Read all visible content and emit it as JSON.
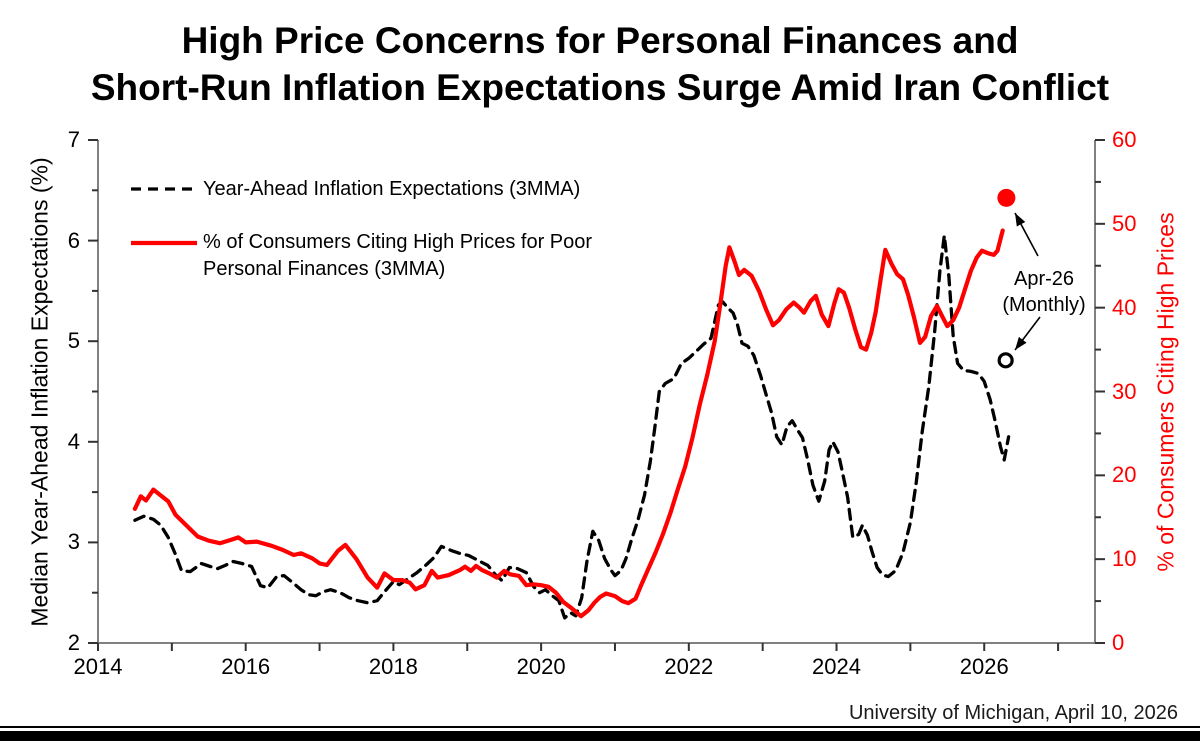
{
  "title": {
    "line1": "High Price Concerns for Personal Finances and",
    "line2": "Short-Run Inflation Expectations Surge Amid Iran Conflict"
  },
  "legend": {
    "item1_label": "Year-Ahead Inflation Expectations (3MMA)",
    "item2_label_line1": "% of Consumers Citing High Prices for Poor",
    "item2_label_line2": "Personal Finances (3MMA)"
  },
  "annotation": {
    "line1": "Apr-26",
    "line2": "(Monthly)"
  },
  "footer": "University of Michigan, April 10, 2026",
  "colors": {
    "series_red": "#ff0000",
    "series_black": "#000000",
    "axis_gray": "#808080"
  },
  "chart_data": {
    "type": "line",
    "title": "High Price Concerns for Personal Finances and Short-Run Inflation Expectations Surge Amid Iran Conflict",
    "x_axis": {
      "range": [
        2014,
        2027.5
      ],
      "tick_step": 1,
      "labeled_ticks": [
        2014,
        2016,
        2018,
        2020,
        2022,
        2024,
        2026
      ]
    },
    "left_axis": {
      "label": "Median Year-Ahead Inflation Expectations (%)",
      "range": [
        2,
        7
      ],
      "major_ticks": [
        2,
        3,
        4,
        5,
        6,
        7
      ],
      "minor_step": 0.5,
      "color": "#000000"
    },
    "right_axis": {
      "label": "% of Consumers Citing High Prices",
      "range": [
        0,
        60
      ],
      "major_ticks": [
        0,
        10,
        20,
        30,
        40,
        50,
        60
      ],
      "minor_step": 5,
      "color": "#ff0000"
    },
    "legend_position": "upper-left",
    "grid": false,
    "series": [
      {
        "name": "Year-Ahead Inflation Expectations (3MMA)",
        "axis": "left",
        "style": "dashed",
        "color": "#000000",
        "points": [
          [
            2014.5,
            3.22
          ],
          [
            2014.62,
            3.26
          ],
          [
            2014.75,
            3.23
          ],
          [
            2014.85,
            3.17
          ],
          [
            2014.95,
            3.05
          ],
          [
            2015.05,
            2.88
          ],
          [
            2015.13,
            2.72
          ],
          [
            2015.25,
            2.71
          ],
          [
            2015.4,
            2.79
          ],
          [
            2015.52,
            2.76
          ],
          [
            2015.62,
            2.74
          ],
          [
            2015.72,
            2.77
          ],
          [
            2015.83,
            2.81
          ],
          [
            2015.95,
            2.79
          ],
          [
            2016.08,
            2.76
          ],
          [
            2016.2,
            2.57
          ],
          [
            2016.3,
            2.55
          ],
          [
            2016.42,
            2.66
          ],
          [
            2016.52,
            2.67
          ],
          [
            2016.62,
            2.61
          ],
          [
            2016.75,
            2.53
          ],
          [
            2016.85,
            2.48
          ],
          [
            2016.95,
            2.47
          ],
          [
            2017.05,
            2.51
          ],
          [
            2017.15,
            2.53
          ],
          [
            2017.28,
            2.5
          ],
          [
            2017.4,
            2.45
          ],
          [
            2017.52,
            2.42
          ],
          [
            2017.65,
            2.4
          ],
          [
            2017.78,
            2.42
          ],
          [
            2017.88,
            2.51
          ],
          [
            2018.0,
            2.61
          ],
          [
            2018.08,
            2.58
          ],
          [
            2018.2,
            2.64
          ],
          [
            2018.32,
            2.7
          ],
          [
            2018.45,
            2.78
          ],
          [
            2018.55,
            2.85
          ],
          [
            2018.65,
            2.96
          ],
          [
            2018.78,
            2.92
          ],
          [
            2018.9,
            2.89
          ],
          [
            2019.02,
            2.87
          ],
          [
            2019.15,
            2.82
          ],
          [
            2019.28,
            2.77
          ],
          [
            2019.38,
            2.68
          ],
          [
            2019.47,
            2.62
          ],
          [
            2019.57,
            2.75
          ],
          [
            2019.68,
            2.74
          ],
          [
            2019.8,
            2.7
          ],
          [
            2019.9,
            2.56
          ],
          [
            2019.98,
            2.5
          ],
          [
            2020.06,
            2.53
          ],
          [
            2020.15,
            2.47
          ],
          [
            2020.24,
            2.42
          ],
          [
            2020.32,
            2.25
          ],
          [
            2020.4,
            2.3
          ],
          [
            2020.47,
            2.27
          ],
          [
            2020.55,
            2.45
          ],
          [
            2020.62,
            2.81
          ],
          [
            2020.7,
            3.11
          ],
          [
            2020.78,
            3.02
          ],
          [
            2020.86,
            2.84
          ],
          [
            2020.95,
            2.72
          ],
          [
            2021.0,
            2.67
          ],
          [
            2021.08,
            2.72
          ],
          [
            2021.15,
            2.84
          ],
          [
            2021.23,
            3.04
          ],
          [
            2021.31,
            3.22
          ],
          [
            2021.4,
            3.47
          ],
          [
            2021.48,
            3.81
          ],
          [
            2021.54,
            4.14
          ],
          [
            2021.6,
            4.5
          ],
          [
            2021.68,
            4.58
          ],
          [
            2021.8,
            4.63
          ],
          [
            2021.9,
            4.78
          ],
          [
            2022.0,
            4.83
          ],
          [
            2022.1,
            4.9
          ],
          [
            2022.2,
            4.97
          ],
          [
            2022.3,
            5.03
          ],
          [
            2022.4,
            5.36
          ],
          [
            2022.46,
            5.39
          ],
          [
            2022.53,
            5.33
          ],
          [
            2022.6,
            5.28
          ],
          [
            2022.66,
            5.16
          ],
          [
            2022.72,
            4.98
          ],
          [
            2022.8,
            4.95
          ],
          [
            2022.88,
            4.86
          ],
          [
            2022.97,
            4.66
          ],
          [
            2023.05,
            4.46
          ],
          [
            2023.12,
            4.29
          ],
          [
            2023.19,
            4.05
          ],
          [
            2023.26,
            3.97
          ],
          [
            2023.33,
            4.15
          ],
          [
            2023.4,
            4.21
          ],
          [
            2023.47,
            4.12
          ],
          [
            2023.54,
            4.04
          ],
          [
            2023.61,
            3.82
          ],
          [
            2023.68,
            3.57
          ],
          [
            2023.76,
            3.41
          ],
          [
            2023.84,
            3.61
          ],
          [
            2023.9,
            3.92
          ],
          [
            2023.95,
            4.0
          ],
          [
            2024.02,
            3.9
          ],
          [
            2024.08,
            3.7
          ],
          [
            2024.15,
            3.45
          ],
          [
            2024.22,
            3.05
          ],
          [
            2024.3,
            3.08
          ],
          [
            2024.35,
            3.17
          ],
          [
            2024.42,
            3.07
          ],
          [
            2024.48,
            2.91
          ],
          [
            2024.55,
            2.75
          ],
          [
            2024.62,
            2.68
          ],
          [
            2024.7,
            2.66
          ],
          [
            2024.8,
            2.72
          ],
          [
            2024.9,
            2.9
          ],
          [
            2025.0,
            3.2
          ],
          [
            2025.08,
            3.6
          ],
          [
            2025.16,
            4.1
          ],
          [
            2025.25,
            4.55
          ],
          [
            2025.33,
            5.1
          ],
          [
            2025.4,
            5.7
          ],
          [
            2025.46,
            6.05
          ],
          [
            2025.52,
            5.65
          ],
          [
            2025.58,
            5.05
          ],
          [
            2025.64,
            4.78
          ],
          [
            2025.72,
            4.71
          ],
          [
            2025.82,
            4.7
          ],
          [
            2025.92,
            4.68
          ],
          [
            2026.0,
            4.6
          ],
          [
            2026.08,
            4.42
          ],
          [
            2026.15,
            4.2
          ],
          [
            2026.22,
            3.95
          ],
          [
            2026.27,
            3.82
          ],
          [
            2026.33,
            4.05
          ]
        ]
      },
      {
        "name": "% of Consumers Citing High Prices for Poor Personal Finances (3MMA)",
        "axis": "right",
        "style": "solid",
        "color": "#ff0000",
        "points": [
          [
            2014.5,
            16.0
          ],
          [
            2014.58,
            17.5
          ],
          [
            2014.65,
            17.0
          ],
          [
            2014.75,
            18.3
          ],
          [
            2014.85,
            17.6
          ],
          [
            2014.95,
            16.9
          ],
          [
            2015.05,
            15.3
          ],
          [
            2015.2,
            14.0
          ],
          [
            2015.35,
            12.7
          ],
          [
            2015.5,
            12.2
          ],
          [
            2015.65,
            11.9
          ],
          [
            2015.8,
            12.3
          ],
          [
            2015.9,
            12.6
          ],
          [
            2016.0,
            12.0
          ],
          [
            2016.15,
            12.1
          ],
          [
            2016.35,
            11.6
          ],
          [
            2016.5,
            11.1
          ],
          [
            2016.65,
            10.5
          ],
          [
            2016.75,
            10.7
          ],
          [
            2016.9,
            10.1
          ],
          [
            2017.0,
            9.5
          ],
          [
            2017.1,
            9.3
          ],
          [
            2017.25,
            11.0
          ],
          [
            2017.35,
            11.7
          ],
          [
            2017.5,
            10.0
          ],
          [
            2017.65,
            7.8
          ],
          [
            2017.78,
            6.6
          ],
          [
            2017.88,
            8.3
          ],
          [
            2018.0,
            7.5
          ],
          [
            2018.12,
            7.5
          ],
          [
            2018.22,
            7.2
          ],
          [
            2018.3,
            6.4
          ],
          [
            2018.42,
            6.9
          ],
          [
            2018.52,
            8.6
          ],
          [
            2018.6,
            7.8
          ],
          [
            2018.75,
            8.1
          ],
          [
            2018.9,
            8.7
          ],
          [
            2018.97,
            9.1
          ],
          [
            2019.05,
            8.6
          ],
          [
            2019.12,
            9.2
          ],
          [
            2019.2,
            8.7
          ],
          [
            2019.3,
            8.3
          ],
          [
            2019.4,
            7.8
          ],
          [
            2019.5,
            8.6
          ],
          [
            2019.58,
            8.2
          ],
          [
            2019.7,
            8.0
          ],
          [
            2019.8,
            6.9
          ],
          [
            2019.9,
            7.0
          ],
          [
            2020.0,
            6.9
          ],
          [
            2020.1,
            6.7
          ],
          [
            2020.2,
            6.0
          ],
          [
            2020.3,
            4.9
          ],
          [
            2020.42,
            4.1
          ],
          [
            2020.54,
            3.2
          ],
          [
            2020.64,
            3.9
          ],
          [
            2020.72,
            4.8
          ],
          [
            2020.8,
            5.5
          ],
          [
            2020.88,
            5.9
          ],
          [
            2021.0,
            5.6
          ],
          [
            2021.1,
            5.0
          ],
          [
            2021.18,
            4.75
          ],
          [
            2021.28,
            5.3
          ],
          [
            2021.35,
            6.8
          ],
          [
            2021.45,
            8.8
          ],
          [
            2021.55,
            10.8
          ],
          [
            2021.65,
            13.0
          ],
          [
            2021.75,
            15.5
          ],
          [
            2021.85,
            18.3
          ],
          [
            2021.95,
            21.0
          ],
          [
            2022.05,
            24.5
          ],
          [
            2022.15,
            28.5
          ],
          [
            2022.25,
            32.0
          ],
          [
            2022.35,
            36.0
          ],
          [
            2022.42,
            40.0
          ],
          [
            2022.5,
            45.0
          ],
          [
            2022.55,
            47.2
          ],
          [
            2022.62,
            45.5
          ],
          [
            2022.68,
            43.9
          ],
          [
            2022.75,
            44.5
          ],
          [
            2022.85,
            43.8
          ],
          [
            2022.95,
            42.0
          ],
          [
            2023.05,
            39.7
          ],
          [
            2023.14,
            37.9
          ],
          [
            2023.22,
            38.5
          ],
          [
            2023.32,
            39.8
          ],
          [
            2023.42,
            40.6
          ],
          [
            2023.5,
            40.0
          ],
          [
            2023.56,
            39.4
          ],
          [
            2023.65,
            40.8
          ],
          [
            2023.72,
            41.4
          ],
          [
            2023.8,
            39.2
          ],
          [
            2023.89,
            37.8
          ],
          [
            2023.97,
            40.5
          ],
          [
            2024.03,
            42.2
          ],
          [
            2024.1,
            41.8
          ],
          [
            2024.17,
            40.0
          ],
          [
            2024.25,
            37.5
          ],
          [
            2024.33,
            35.3
          ],
          [
            2024.4,
            35.0
          ],
          [
            2024.47,
            37.0
          ],
          [
            2024.53,
            39.5
          ],
          [
            2024.6,
            43.5
          ],
          [
            2024.66,
            46.9
          ],
          [
            2024.74,
            45.3
          ],
          [
            2024.82,
            44.0
          ],
          [
            2024.9,
            43.4
          ],
          [
            2024.97,
            41.5
          ],
          [
            2025.05,
            38.8
          ],
          [
            2025.13,
            35.8
          ],
          [
            2025.2,
            36.5
          ],
          [
            2025.28,
            39.0
          ],
          [
            2025.36,
            40.2
          ],
          [
            2025.44,
            38.8
          ],
          [
            2025.5,
            37.8
          ],
          [
            2025.58,
            38.5
          ],
          [
            2025.66,
            40.0
          ],
          [
            2025.74,
            42.2
          ],
          [
            2025.82,
            44.4
          ],
          [
            2025.9,
            46.0
          ],
          [
            2025.97,
            46.8
          ],
          [
            2026.05,
            46.5
          ],
          [
            2026.13,
            46.3
          ],
          [
            2026.18,
            46.8
          ],
          [
            2026.25,
            49.2
          ]
        ]
      }
    ],
    "markers": [
      {
        "label": "Apr-26 (Monthly)",
        "axis": "right",
        "x": 2026.3,
        "value": 53.1,
        "style": "filled",
        "color": "#ff0000"
      },
      {
        "label": "Apr-26 (Monthly)",
        "axis": "left",
        "x": 2026.29,
        "value": 4.81,
        "style": "open",
        "color": "#000000"
      }
    ],
    "annotation_text": "Apr-26 (Monthly)",
    "source_note": "University of Michigan, April 10, 2026"
  }
}
